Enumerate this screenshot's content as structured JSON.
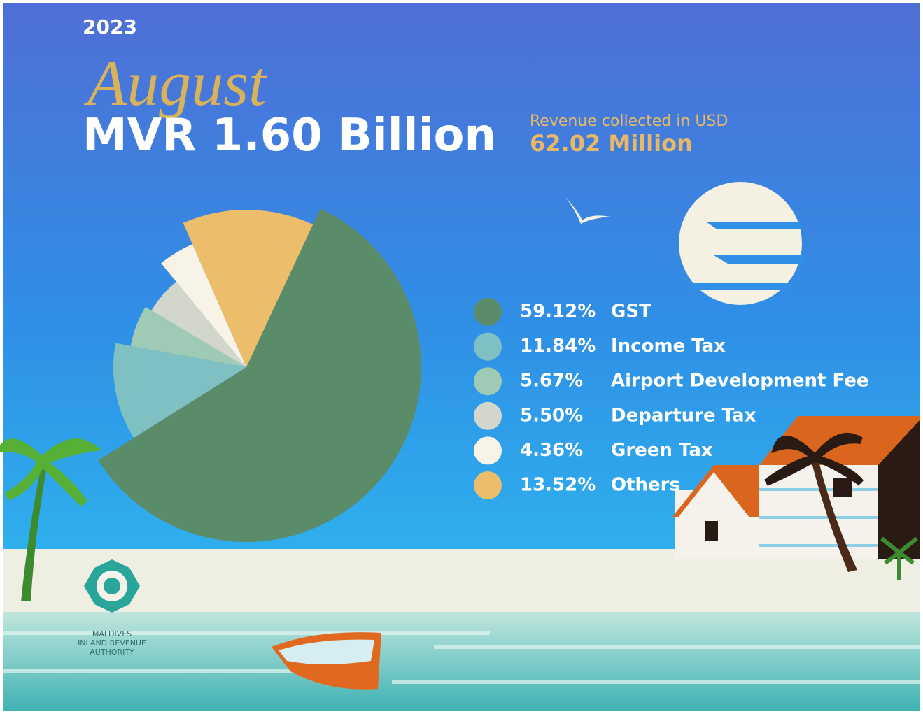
{
  "chart_data": {
    "type": "pie",
    "kicker": "2023",
    "heading": "August",
    "title": "MVR 1.60 Billion",
    "annotations": [
      "Revenue collected in USD",
      "62.02 Million"
    ],
    "categories": [
      "GST",
      "Income Tax",
      "Airport Development Fee",
      "Departure Tax",
      "Green Tax",
      "Others"
    ],
    "values": [
      59.12,
      11.84,
      5.67,
      5.5,
      4.36,
      13.52
    ],
    "value_labels": [
      "59.12%",
      "11.84%",
      "5.67%",
      "5.50%",
      "4.36%",
      "13.52%"
    ],
    "colors": [
      "#5a8c6a",
      "#7fc1c3",
      "#9ecab6",
      "#d3d6cb",
      "#f7f4e7",
      "#ecbd6a"
    ]
  },
  "logo": {
    "lines": [
      "MALDIVES",
      "INLAND REVENUE",
      "AUTHORITY"
    ]
  }
}
